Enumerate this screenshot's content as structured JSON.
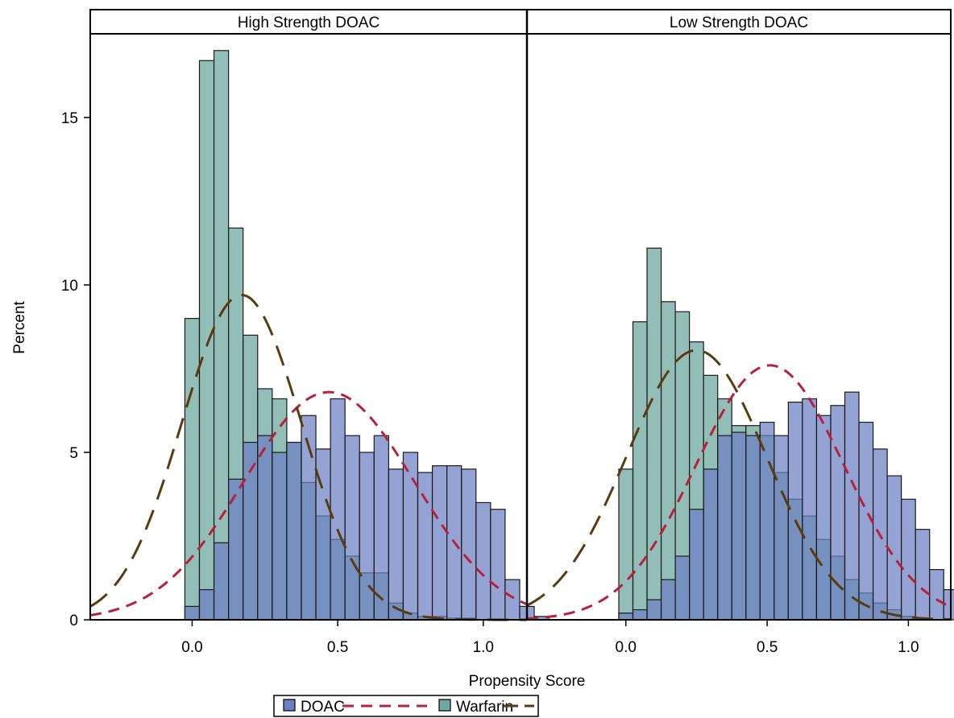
{
  "chart_data": {
    "type": "bar",
    "ylabel": "Percent",
    "xlabel": "Propensity Score",
    "ylim": [
      0,
      17.5
    ],
    "xlim": [
      -0.35,
      1.15
    ],
    "bin_width": 0.05,
    "y_ticks": [
      0,
      5,
      10,
      15
    ],
    "x_ticks": [
      0.0,
      0.5,
      1.0
    ],
    "y_tick_labels": [
      "0",
      "5",
      "10",
      "15"
    ],
    "x_tick_labels": [
      "0.0",
      "0.5",
      "1.0"
    ],
    "colors": {
      "doac": "#6b7fc4",
      "warfarin": "#6fa8a0",
      "overlap": "#5f8fa6",
      "doac_curve": "#b5213f",
      "warfarin_curve": "#5a3a10"
    },
    "legend": {
      "placement": "bottom",
      "entries": [
        {
          "label": "DOAC",
          "kind": "bar",
          "series": "doac"
        },
        {
          "label": "",
          "kind": "line",
          "series": "doac_curve"
        },
        {
          "label": "Warfarin",
          "kind": "bar",
          "series": "warfarin"
        },
        {
          "label": "",
          "kind": "line",
          "series": "warfarin_curve"
        }
      ]
    },
    "panels": [
      {
        "title": "High Strength DOAC",
        "bin_start": 0.0,
        "warfarin": [
          9.0,
          16.7,
          17.0,
          11.7,
          8.5,
          6.9,
          6.6,
          5.3,
          4.1,
          3.1,
          2.4,
          1.9,
          1.4,
          1.4,
          0.5,
          0.2,
          0.1,
          0.1,
          0.05,
          0.05
        ],
        "doac": [
          0.4,
          0.9,
          2.3,
          4.2,
          5.3,
          5.5,
          5.0,
          5.3,
          6.1,
          5.1,
          6.6,
          5.5,
          5.0,
          5.5,
          4.5,
          5.0,
          4.4,
          4.6,
          4.6,
          4.5,
          3.5,
          3.3,
          1.2,
          0.4,
          0.1
        ],
        "warfarin_curve": {
          "mean": 0.17,
          "peak": 9.7
        },
        "doac_curve": {
          "mean": 0.47,
          "peak": 6.8
        }
      },
      {
        "title": "Low Strength DOAC",
        "bin_start": 0.0,
        "warfarin": [
          4.5,
          8.9,
          11.1,
          9.5,
          9.2,
          8.3,
          7.3,
          6.6,
          5.8,
          5.8,
          5.5,
          4.4,
          3.6,
          3.1,
          2.4,
          1.9,
          1.2,
          0.8,
          0.5,
          0.3,
          0.1,
          0.05
        ],
        "doac": [
          0.2,
          0.3,
          0.6,
          1.2,
          1.9,
          3.3,
          4.5,
          5.5,
          5.6,
          5.5,
          5.9,
          5.5,
          6.5,
          6.6,
          6.1,
          6.4,
          6.8,
          5.9,
          5.1,
          4.3,
          3.6,
          2.7,
          1.5,
          0.9,
          0.4,
          0.1
        ],
        "warfarin_curve": {
          "mean": 0.25,
          "peak": 8.05
        },
        "doac_curve": {
          "mean": 0.51,
          "peak": 7.6
        }
      }
    ]
  }
}
